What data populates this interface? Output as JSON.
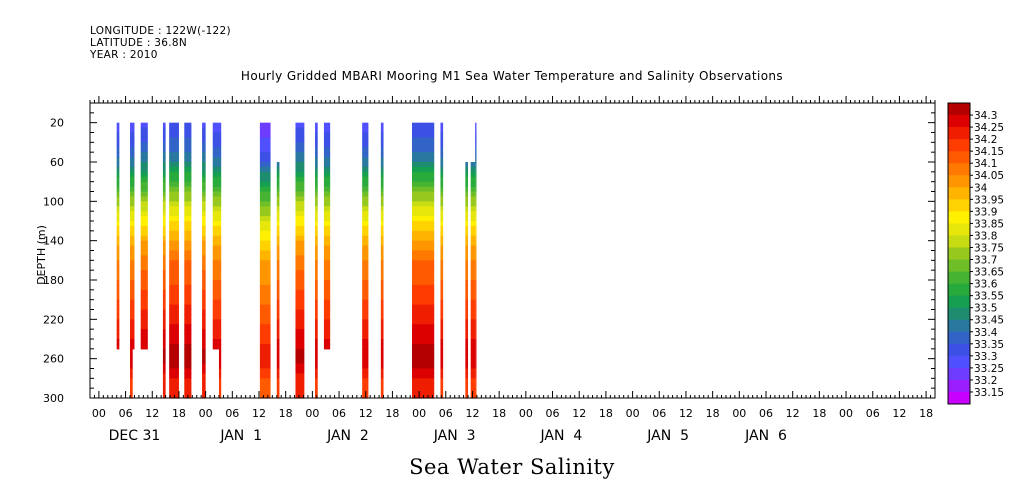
{
  "header": {
    "longitude": "LONGITUDE : 122W(-122)",
    "latitude": "LATITUDE : 36.8N",
    "year": "YEAR : 2010"
  },
  "footer_label": "Sea Water Salinity",
  "chart_data": {
    "type": "heatmap",
    "title": "Hourly Gridded MBARI Mooring M1 Sea Water Temperature and Salinity Observations",
    "xlabel": "",
    "ylabel": "DEPTH (m)",
    "variable": "Sea Water Salinity",
    "x_axis": {
      "unit": "hours since 2009-12-30 22:00",
      "range": [
        0,
        190
      ],
      "hour_ticks": [
        {
          "h": 2,
          "label": "00"
        },
        {
          "h": 8,
          "label": "06"
        },
        {
          "h": 14,
          "label": "12"
        },
        {
          "h": 20,
          "label": "18"
        },
        {
          "h": 26,
          "label": "00"
        },
        {
          "h": 32,
          "label": "06"
        },
        {
          "h": 38,
          "label": "12"
        },
        {
          "h": 44,
          "label": "18"
        },
        {
          "h": 50,
          "label": "00"
        },
        {
          "h": 56,
          "label": "06"
        },
        {
          "h": 62,
          "label": "12"
        },
        {
          "h": 68,
          "label": "18"
        },
        {
          "h": 74,
          "label": "00"
        },
        {
          "h": 80,
          "label": "06"
        },
        {
          "h": 86,
          "label": "12"
        },
        {
          "h": 92,
          "label": "18"
        },
        {
          "h": 98,
          "label": "00"
        },
        {
          "h": 104,
          "label": "06"
        },
        {
          "h": 110,
          "label": "12"
        },
        {
          "h": 116,
          "label": "18"
        },
        {
          "h": 122,
          "label": "00"
        },
        {
          "h": 128,
          "label": "06"
        },
        {
          "h": 134,
          "label": "12"
        },
        {
          "h": 140,
          "label": "18"
        },
        {
          "h": 146,
          "label": "00"
        },
        {
          "h": 152,
          "label": "06"
        },
        {
          "h": 158,
          "label": "12"
        },
        {
          "h": 164,
          "label": "18"
        },
        {
          "h": 170,
          "label": "00"
        },
        {
          "h": 176,
          "label": "06"
        },
        {
          "h": 182,
          "label": "12"
        },
        {
          "h": 188,
          "label": "18"
        }
      ],
      "day_labels": [
        {
          "h": 10,
          "label": "DEC 31"
        },
        {
          "h": 34,
          "label": "JAN  1"
        },
        {
          "h": 58,
          "label": "JAN  2"
        },
        {
          "h": 82,
          "label": "JAN  3"
        },
        {
          "h": 106,
          "label": "JAN  4"
        },
        {
          "h": 130,
          "label": "JAN  5"
        },
        {
          "h": 152,
          "label": "JAN  6"
        }
      ]
    },
    "y_axis": {
      "range": [
        0,
        300
      ],
      "reversed": true,
      "ticks": [
        20,
        60,
        100,
        140,
        180,
        220,
        260,
        300
      ]
    },
    "colorbar": {
      "levels": [
        "33.15",
        "33.2",
        "33.25",
        "33.3",
        "33.35",
        "33.4",
        "33.45",
        "33.5",
        "33.55",
        "33.6",
        "33.65",
        "33.7",
        "33.75",
        "33.8",
        "33.85",
        "33.9",
        "33.95",
        "34",
        "34.05",
        "34.1",
        "34.15",
        "34.2",
        "34.25",
        "34.3"
      ],
      "colors": [
        "#c800ff",
        "#9b1eff",
        "#6e3cff",
        "#5050ff",
        "#3c50e6",
        "#3264c8",
        "#2878a0",
        "#1e8c6e",
        "#14a050",
        "#28aa3c",
        "#46b432",
        "#6ebe28",
        "#96c81e",
        "#c8dc14",
        "#e6e60a",
        "#fff000",
        "#ffd200",
        "#ffb400",
        "#ff9600",
        "#ff7800",
        "#ff5a00",
        "#ff3c00",
        "#f01e00",
        "#dc0000",
        "#b40000"
      ],
      "position": "right"
    },
    "profile_model": {
      "bands": [
        {
          "z": 20,
          "value": 33.27
        },
        {
          "z": 40,
          "value": 33.32
        },
        {
          "z": 60,
          "value": 33.42
        },
        {
          "z": 80,
          "value": 33.57
        },
        {
          "z": 100,
          "value": 33.72
        },
        {
          "z": 120,
          "value": 33.86
        },
        {
          "z": 140,
          "value": 33.97
        },
        {
          "z": 160,
          "value": 34.06
        },
        {
          "z": 180,
          "value": 34.1
        },
        {
          "z": 200,
          "value": 34.15
        },
        {
          "z": 220,
          "value": 34.2
        },
        {
          "z": 240,
          "value": 34.25
        },
        {
          "z": 260,
          "value": 34.3
        },
        {
          "z": 280,
          "value": 34.2
        },
        {
          "z": 300,
          "value": 34.18
        }
      ]
    },
    "segments": [
      {
        "x0": 6.0,
        "x1": 6.6,
        "ztop": 20,
        "zbot": 250,
        "offset": 0.0
      },
      {
        "x0": 9.0,
        "x1": 10.0,
        "ztop": 20,
        "zbot": 250,
        "offset": 0.0
      },
      {
        "x0": 9.0,
        "x1": 9.6,
        "ztop": 250,
        "zbot": 300,
        "offset": 0.0
      },
      {
        "x0": 11.4,
        "x1": 13.0,
        "ztop": 20,
        "zbot": 250,
        "offset": 0.02
      },
      {
        "x0": 16.4,
        "x1": 17.0,
        "ztop": 20,
        "zbot": 300,
        "offset": 0.02
      },
      {
        "x0": 17.8,
        "x1": 20.0,
        "ztop": 20,
        "zbot": 300,
        "offset": 0.04
      },
      {
        "x0": 21.2,
        "x1": 22.8,
        "ztop": 20,
        "zbot": 300,
        "offset": 0.04
      },
      {
        "x0": 25.2,
        "x1": 26.0,
        "ztop": 20,
        "zbot": 300,
        "offset": 0.02
      },
      {
        "x0": 27.6,
        "x1": 29.0,
        "ztop": 20,
        "zbot": 250,
        "offset": 0.0
      },
      {
        "x0": 29.0,
        "x1": 29.5,
        "ztop": 20,
        "zbot": 300,
        "offset": 0.0
      },
      {
        "x0": 38.2,
        "x1": 40.6,
        "ztop": 20,
        "zbot": 300,
        "offset": -0.06
      },
      {
        "x0": 42.0,
        "x1": 42.6,
        "ztop": 60,
        "zbot": 300,
        "offset": 0.0
      },
      {
        "x0": 46.2,
        "x1": 48.2,
        "ztop": 20,
        "zbot": 300,
        "offset": 0.02
      },
      {
        "x0": 50.6,
        "x1": 51.2,
        "ztop": 20,
        "zbot": 300,
        "offset": 0.0
      },
      {
        "x0": 52.6,
        "x1": 54.0,
        "ztop": 20,
        "zbot": 250,
        "offset": 0.0
      },
      {
        "x0": 61.2,
        "x1": 62.6,
        "ztop": 20,
        "zbot": 300,
        "offset": 0.0
      },
      {
        "x0": 65.4,
        "x1": 66.0,
        "ztop": 20,
        "zbot": 300,
        "offset": 0.0
      },
      {
        "x0": 72.4,
        "x1": 77.4,
        "ztop": 20,
        "zbot": 300,
        "offset": 0.04
      },
      {
        "x0": 78.8,
        "x1": 79.4,
        "ztop": 20,
        "zbot": 300,
        "offset": 0.0
      },
      {
        "x0": 84.4,
        "x1": 85.0,
        "ztop": 60,
        "zbot": 300,
        "offset": 0.0
      },
      {
        "x0": 85.6,
        "x1": 86.6,
        "ztop": 60,
        "zbot": 300,
        "offset": 0.0
      },
      {
        "x0": 86.6,
        "x1": 86.9,
        "ztop": 20,
        "zbot": 300,
        "offset": 0.0
      }
    ]
  }
}
